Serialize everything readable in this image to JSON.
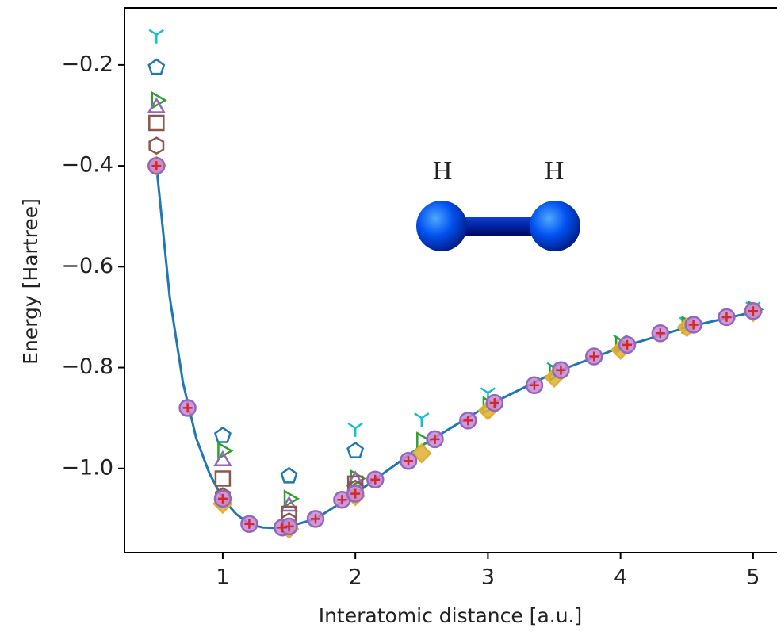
{
  "chart_data": {
    "type": "scatter",
    "xlabel": "Interatomic distance [a.u.]",
    "ylabel": "Energy [Hartree]",
    "xlim": [
      0.259,
      5.18
    ],
    "ylim": [
      -1.167,
      -0.087
    ],
    "xticks": [
      1,
      2,
      3,
      4,
      5
    ],
    "yticks": [
      {
        "value": -1.0,
        "label": "−1.0"
      },
      {
        "value": -0.8,
        "label": "−0.8"
      },
      {
        "value": -0.6,
        "label": "−0.6"
      },
      {
        "value": -0.4,
        "label": "−0.4"
      },
      {
        "value": -0.2,
        "label": "−0.2"
      }
    ],
    "annotations": [
      "H",
      "H"
    ],
    "series": [
      {
        "kind": "line",
        "color": "#1f77b4",
        "x": [
          0.5,
          0.6,
          0.7,
          0.8,
          0.9,
          1.0,
          1.1,
          1.2,
          1.3,
          1.4,
          1.5,
          1.7,
          2.0,
          2.5,
          3.0,
          3.5,
          4.0,
          4.5,
          5.0
        ],
        "values": [
          -0.4,
          -0.66,
          -0.83,
          -0.94,
          -1.01,
          -1.06,
          -1.09,
          -1.11,
          -1.117,
          -1.118,
          -1.115,
          -1.1,
          -1.05,
          -0.955,
          -0.875,
          -0.81,
          -0.76,
          -0.72,
          -0.69
        ]
      },
      {
        "marker": "tri",
        "color": "#17becf",
        "x": [
          0.5,
          2,
          2.5,
          3,
          3.5,
          4,
          4.5,
          5
        ],
        "values": [
          -0.14,
          -0.92,
          -0.9,
          -0.85,
          -0.8,
          -0.745,
          -0.71,
          -0.68
        ]
      },
      {
        "marker": "pentagon",
        "color": "#1f77b4",
        "x": [
          0.5,
          1,
          1.5,
          2
        ],
        "values": [
          -0.205,
          -0.935,
          -1.015,
          -0.965
        ]
      },
      {
        "marker": "right",
        "color": "#2ca02c",
        "x": [
          0.5,
          1,
          1.5,
          2,
          2.5,
          3,
          3.5,
          4,
          4.5,
          5
        ],
        "values": [
          -0.27,
          -0.965,
          -1.06,
          -1.02,
          -0.945,
          -0.875,
          -0.81,
          -0.755,
          -0.715,
          -0.685
        ]
      },
      {
        "marker": "up",
        "color": "#9467bd",
        "x": [
          0.5,
          1,
          1.5,
          2
        ],
        "values": [
          -0.285,
          -0.985,
          -1.075,
          -1.025
        ]
      },
      {
        "marker": "square",
        "color": "#8c564b",
        "x": [
          0.5,
          1,
          1.5,
          2
        ],
        "values": [
          -0.315,
          -1.02,
          -1.09,
          -1.03
        ]
      },
      {
        "marker": "hexagon",
        "color": "#8c564b",
        "x": [
          0.5,
          1,
          1.5,
          2
        ],
        "values": [
          -0.36,
          -1.055,
          -1.105,
          -1.04
        ]
      },
      {
        "marker": "diamond",
        "color": "#e0b030",
        "x": [
          0.5,
          1,
          1.5,
          2,
          2.5,
          3,
          3.5,
          4,
          4.5,
          5
        ],
        "values": [
          -0.4,
          -1.07,
          -1.12,
          -1.055,
          -0.97,
          -0.885,
          -0.82,
          -0.765,
          -0.72,
          -0.69
        ]
      },
      {
        "marker": "circle",
        "color": "#9467bd",
        "x": [
          0.5,
          0.735,
          1.0,
          1.2,
          1.45,
          1.5,
          1.7,
          1.9,
          2.0,
          2.15,
          2.4,
          2.6,
          2.85,
          3.05,
          3.35,
          3.55,
          3.8,
          4.05,
          4.3,
          4.55,
          4.8,
          5.0
        ],
        "values": [
          -0.4,
          -0.88,
          -1.06,
          -1.11,
          -1.117,
          -1.115,
          -1.1,
          -1.062,
          -1.05,
          -1.022,
          -0.985,
          -0.942,
          -0.905,
          -0.87,
          -0.835,
          -0.805,
          -0.778,
          -0.755,
          -0.732,
          -0.715,
          -0.7,
          -0.688
        ]
      },
      {
        "marker": "plus",
        "color": "#d62728",
        "x": [
          0.5,
          0.735,
          1.0,
          1.2,
          1.45,
          1.5,
          1.7,
          1.9,
          2.0,
          2.15,
          2.4,
          2.6,
          2.85,
          3.05,
          3.35,
          3.55,
          3.8,
          4.05,
          4.3,
          4.55,
          4.8,
          5.0
        ],
        "values": [
          -0.4,
          -0.88,
          -1.06,
          -1.11,
          -1.117,
          -1.115,
          -1.1,
          -1.062,
          -1.05,
          -1.022,
          -0.985,
          -0.942,
          -0.905,
          -0.87,
          -0.835,
          -0.805,
          -0.778,
          -0.755,
          -0.732,
          -0.715,
          -0.7,
          -0.688
        ]
      }
    ]
  }
}
